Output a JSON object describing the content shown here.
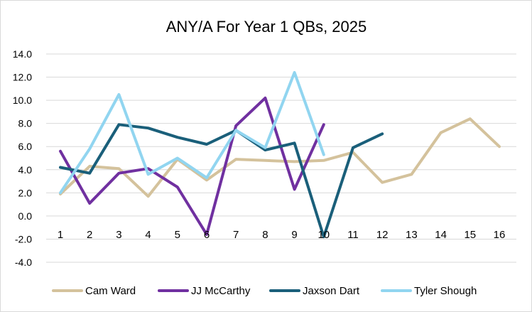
{
  "chart_data": {
    "type": "line",
    "title": "ANY/A For Year 1 QBs, 2025",
    "xlabel": "",
    "ylabel": "",
    "x": [
      1,
      2,
      3,
      4,
      5,
      6,
      7,
      8,
      9,
      10,
      11,
      12,
      13,
      14,
      15,
      16
    ],
    "x_tick_labels": [
      "1",
      "2",
      "3",
      "4",
      "5",
      "6",
      "7",
      "8",
      "9",
      "10",
      "11",
      "12",
      "13",
      "14",
      "15",
      "16"
    ],
    "ylim": [
      -4.0,
      14.0
    ],
    "y_tick_labels": [
      "14.0",
      "12.0",
      "10.0",
      "8.0",
      "6.0",
      "4.0",
      "2.0",
      "0.0",
      "-2.0",
      "-4.0"
    ],
    "y_ticks": [
      14,
      12,
      10,
      8,
      6,
      4,
      2,
      0,
      -2,
      -4
    ],
    "grid": true,
    "legend_position": "bottom",
    "series": [
      {
        "name": "Cam Ward",
        "color": "#d4c29c",
        "x": [
          1,
          2,
          3,
          4,
          5,
          6,
          7,
          8,
          9,
          10,
          11,
          12,
          13,
          14,
          15,
          16
        ],
        "values": [
          1.9,
          4.3,
          4.1,
          1.7,
          4.9,
          3.1,
          4.9,
          4.8,
          4.7,
          4.8,
          5.5,
          2.9,
          3.6,
          7.2,
          8.4,
          6.0
        ]
      },
      {
        "name": "JJ McCarthy",
        "color": "#7030a0",
        "x": [
          1,
          2,
          3,
          4,
          5,
          6,
          7,
          8,
          9,
          10
        ],
        "values": [
          5.6,
          1.1,
          3.7,
          4.1,
          2.5,
          -1.6,
          7.8,
          10.2,
          2.3,
          7.9
        ]
      },
      {
        "name": "Jaxson Dart",
        "color": "#1a5f7a",
        "x": [
          1,
          2,
          3,
          4,
          5,
          6,
          7,
          8,
          9,
          10,
          11,
          12
        ],
        "values": [
          4.2,
          3.7,
          7.9,
          7.6,
          6.8,
          6.2,
          7.4,
          5.7,
          6.3,
          -1.8,
          5.9,
          7.1
        ]
      },
      {
        "name": "Tyler Shough",
        "color": "#91d5f0",
        "x": [
          1,
          2,
          3,
          4,
          5,
          6,
          7,
          8,
          9,
          10
        ],
        "values": [
          2.0,
          5.8,
          10.5,
          3.6,
          5.0,
          3.3,
          7.4,
          5.9,
          12.4,
          5.3
        ]
      }
    ]
  }
}
